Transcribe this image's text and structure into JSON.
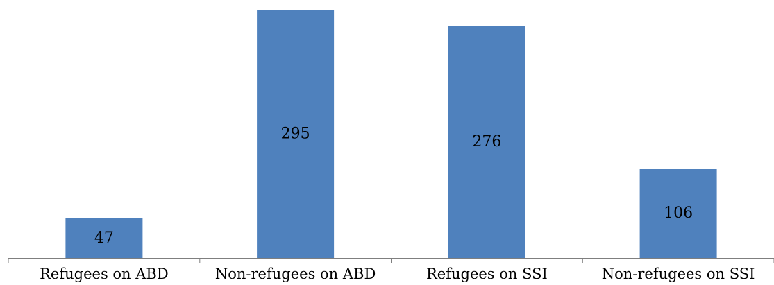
{
  "chart_data": {
    "type": "bar",
    "categories": [
      "Refugees on ABD",
      "Non-refugees on ABD",
      "Refugees on SSI",
      "Non-refugees on SSI"
    ],
    "values": [
      47,
      295,
      276,
      106
    ],
    "data_labels": [
      "47",
      "295",
      "276",
      "106"
    ],
    "title": "",
    "xlabel": "",
    "ylabel": "",
    "ylim": [
      0,
      300
    ],
    "grid": false,
    "legend": "none",
    "colors": {
      "bar": "#4f81bd",
      "axis": "#7f7f7f",
      "text": "#000000"
    }
  }
}
